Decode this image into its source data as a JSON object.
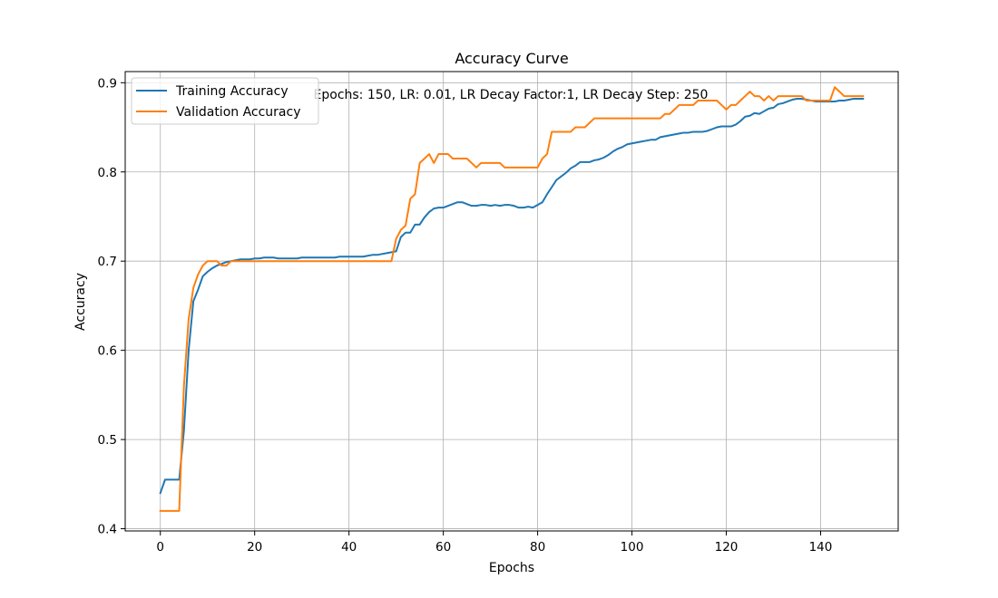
{
  "chart_data": {
    "type": "line",
    "title": "Accuracy Curve",
    "xlabel": "Epochs",
    "ylabel": "Accuracy",
    "annotation": "Epochs: 150, LR: 0.01, LR Decay Factor:1, LR Decay Step: 250",
    "xlim": [
      -7.45,
      156.45
    ],
    "ylim": [
      0.3975,
      0.9125
    ],
    "xticks": [
      0,
      20,
      40,
      60,
      80,
      100,
      120,
      140
    ],
    "yticks": [
      0.4,
      0.5,
      0.6,
      0.7,
      0.8,
      0.9
    ],
    "grid": true,
    "legend": "upper left",
    "x": [
      0,
      1,
      2,
      3,
      4,
      5,
      6,
      7,
      8,
      9,
      10,
      11,
      12,
      13,
      14,
      15,
      16,
      17,
      18,
      19,
      20,
      21,
      22,
      23,
      24,
      25,
      26,
      27,
      28,
      29,
      30,
      31,
      32,
      33,
      34,
      35,
      36,
      37,
      38,
      39,
      40,
      41,
      42,
      43,
      44,
      45,
      46,
      47,
      48,
      49,
      50,
      51,
      52,
      53,
      54,
      55,
      56,
      57,
      58,
      59,
      60,
      61,
      62,
      63,
      64,
      65,
      66,
      67,
      68,
      69,
      70,
      71,
      72,
      73,
      74,
      75,
      76,
      77,
      78,
      79,
      80,
      81,
      82,
      83,
      84,
      85,
      86,
      87,
      88,
      89,
      90,
      91,
      92,
      93,
      94,
      95,
      96,
      97,
      98,
      99,
      100,
      101,
      102,
      103,
      104,
      105,
      106,
      107,
      108,
      109,
      110,
      111,
      112,
      113,
      114,
      115,
      116,
      117,
      118,
      119,
      120,
      121,
      122,
      123,
      124,
      125,
      126,
      127,
      128,
      129,
      130,
      131,
      132,
      133,
      134,
      135,
      136,
      137,
      138,
      139,
      140,
      141,
      142,
      143,
      144,
      145,
      146,
      147,
      148,
      149
    ],
    "series": [
      {
        "name": "Training Accuracy",
        "color": "#1f77b4",
        "values": [
          0.44,
          0.455,
          0.455,
          0.455,
          0.455,
          0.51,
          0.6,
          0.655,
          0.668,
          0.683,
          0.688,
          0.692,
          0.695,
          0.697,
          0.699,
          0.7,
          0.701,
          0.702,
          0.702,
          0.702,
          0.703,
          0.703,
          0.704,
          0.704,
          0.704,
          0.703,
          0.703,
          0.703,
          0.703,
          0.703,
          0.704,
          0.704,
          0.704,
          0.704,
          0.704,
          0.704,
          0.704,
          0.704,
          0.705,
          0.705,
          0.705,
          0.705,
          0.705,
          0.705,
          0.706,
          0.707,
          0.707,
          0.708,
          0.709,
          0.71,
          0.711,
          0.727,
          0.732,
          0.732,
          0.741,
          0.741,
          0.749,
          0.755,
          0.759,
          0.76,
          0.76,
          0.762,
          0.764,
          0.766,
          0.766,
          0.764,
          0.762,
          0.762,
          0.763,
          0.763,
          0.762,
          0.763,
          0.762,
          0.763,
          0.763,
          0.762,
          0.76,
          0.76,
          0.761,
          0.76,
          0.763,
          0.766,
          0.775,
          0.783,
          0.791,
          0.795,
          0.799,
          0.804,
          0.807,
          0.811,
          0.811,
          0.811,
          0.813,
          0.814,
          0.816,
          0.819,
          0.823,
          0.826,
          0.828,
          0.831,
          0.832,
          0.833,
          0.834,
          0.835,
          0.836,
          0.836,
          0.839,
          0.84,
          0.841,
          0.842,
          0.843,
          0.844,
          0.844,
          0.845,
          0.845,
          0.845,
          0.846,
          0.848,
          0.85,
          0.851,
          0.851,
          0.851,
          0.853,
          0.857,
          0.862,
          0.863,
          0.866,
          0.865,
          0.868,
          0.871,
          0.872,
          0.876,
          0.877,
          0.879,
          0.881,
          0.882,
          0.882,
          0.881,
          0.88,
          0.879,
          0.879,
          0.879,
          0.879,
          0.879,
          0.88,
          0.88,
          0.881,
          0.882,
          0.882,
          0.882
        ]
      },
      {
        "name": "Validation Accuracy",
        "color": "#ff7f0e",
        "values": [
          0.42,
          0.42,
          0.42,
          0.42,
          0.42,
          0.56,
          0.635,
          0.67,
          0.685,
          0.695,
          0.7,
          0.7,
          0.7,
          0.695,
          0.695,
          0.7,
          0.7,
          0.7,
          0.7,
          0.7,
          0.7,
          0.7,
          0.7,
          0.7,
          0.7,
          0.7,
          0.7,
          0.7,
          0.7,
          0.7,
          0.7,
          0.7,
          0.7,
          0.7,
          0.7,
          0.7,
          0.7,
          0.7,
          0.7,
          0.7,
          0.7,
          0.7,
          0.7,
          0.7,
          0.7,
          0.7,
          0.7,
          0.7,
          0.7,
          0.7,
          0.725,
          0.735,
          0.74,
          0.77,
          0.775,
          0.81,
          0.815,
          0.82,
          0.81,
          0.82,
          0.82,
          0.82,
          0.815,
          0.815,
          0.815,
          0.815,
          0.81,
          0.805,
          0.81,
          0.81,
          0.81,
          0.81,
          0.81,
          0.805,
          0.805,
          0.805,
          0.805,
          0.805,
          0.805,
          0.805,
          0.805,
          0.815,
          0.82,
          0.845,
          0.845,
          0.845,
          0.845,
          0.845,
          0.85,
          0.85,
          0.85,
          0.855,
          0.86,
          0.86,
          0.86,
          0.86,
          0.86,
          0.86,
          0.86,
          0.86,
          0.86,
          0.86,
          0.86,
          0.86,
          0.86,
          0.86,
          0.86,
          0.865,
          0.865,
          0.87,
          0.875,
          0.875,
          0.875,
          0.875,
          0.88,
          0.88,
          0.88,
          0.88,
          0.88,
          0.875,
          0.87,
          0.875,
          0.875,
          0.88,
          0.885,
          0.89,
          0.885,
          0.885,
          0.88,
          0.885,
          0.88,
          0.885,
          0.885,
          0.885,
          0.885,
          0.885,
          0.885,
          0.88,
          0.88,
          0.88,
          0.88,
          0.88,
          0.88,
          0.895,
          0.89,
          0.885,
          0.885,
          0.885,
          0.885,
          0.885
        ]
      }
    ]
  }
}
